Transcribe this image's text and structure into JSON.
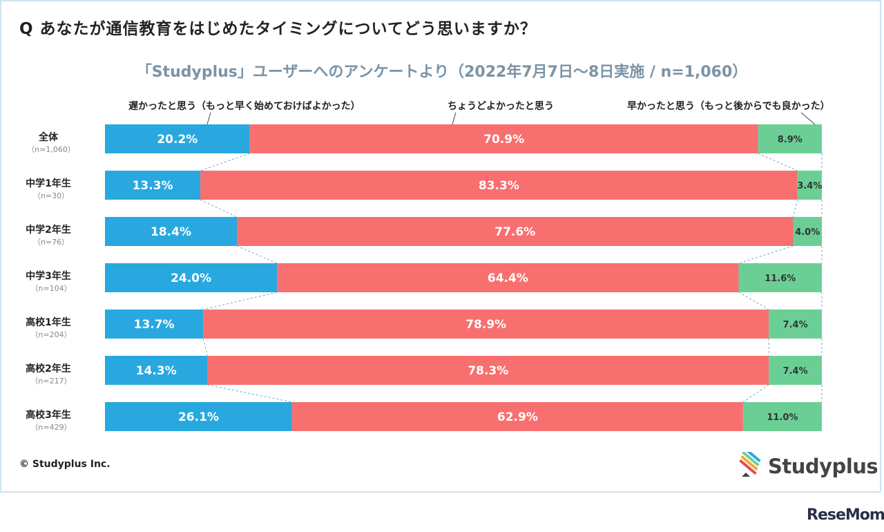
{
  "question": "Q あなたが通信教育をはじめたタイミングについてどう思いますか？",
  "chart_data": {
    "type": "bar",
    "stacked": true,
    "orientation": "horizontal",
    "percent": true,
    "title": "「Studyplus」ユーザーへのアンケートより（2022年7月7日〜8日実施 / n=1,060）",
    "categories": [
      "全体",
      "中学1年生",
      "中学2年生",
      "中学3年生",
      "高校1年生",
      "高校2年生",
      "高校3年生"
    ],
    "n_labels": [
      "（n=1,060）",
      "（n=30）",
      "（n=76）",
      "（n=104）",
      "（n=204）",
      "（n=217）",
      "（n=429）"
    ],
    "series": [
      {
        "name": "遅かったと思う（もっと早く始めておけばよかった）",
        "color": "#29a8e0",
        "values": [
          20.2,
          13.3,
          18.4,
          24.0,
          13.7,
          14.3,
          26.1
        ]
      },
      {
        "name": "ちょうどよかったと思う",
        "color": "#f86f6f",
        "values": [
          70.9,
          83.3,
          77.6,
          64.4,
          78.9,
          78.3,
          62.9
        ]
      },
      {
        "name": "早かったと思う（もっと後からでも良かった）",
        "color": "#6bcf95",
        "values": [
          8.9,
          3.4,
          4.0,
          11.6,
          7.4,
          7.4,
          11.0
        ]
      }
    ],
    "value_labels": [
      [
        "20.2%",
        "70.9%",
        "8.9%"
      ],
      [
        "13.3%",
        "83.3%",
        "3.4%"
      ],
      [
        "18.4%",
        "77.6%",
        "4.0%"
      ],
      [
        "24.0%",
        "64.4%",
        "11.6%"
      ],
      [
        "13.7%",
        "78.9%",
        "7.4%"
      ],
      [
        "14.3%",
        "78.3%",
        "7.4%"
      ],
      [
        "26.1%",
        "62.9%",
        "11.0%"
      ]
    ],
    "xlim": [
      0,
      100
    ],
    "legend": "top",
    "grid": false
  },
  "footer": {
    "copyright": "© Studyplus Inc.",
    "brand": "Studyplus",
    "watermark": "ReseMom"
  }
}
